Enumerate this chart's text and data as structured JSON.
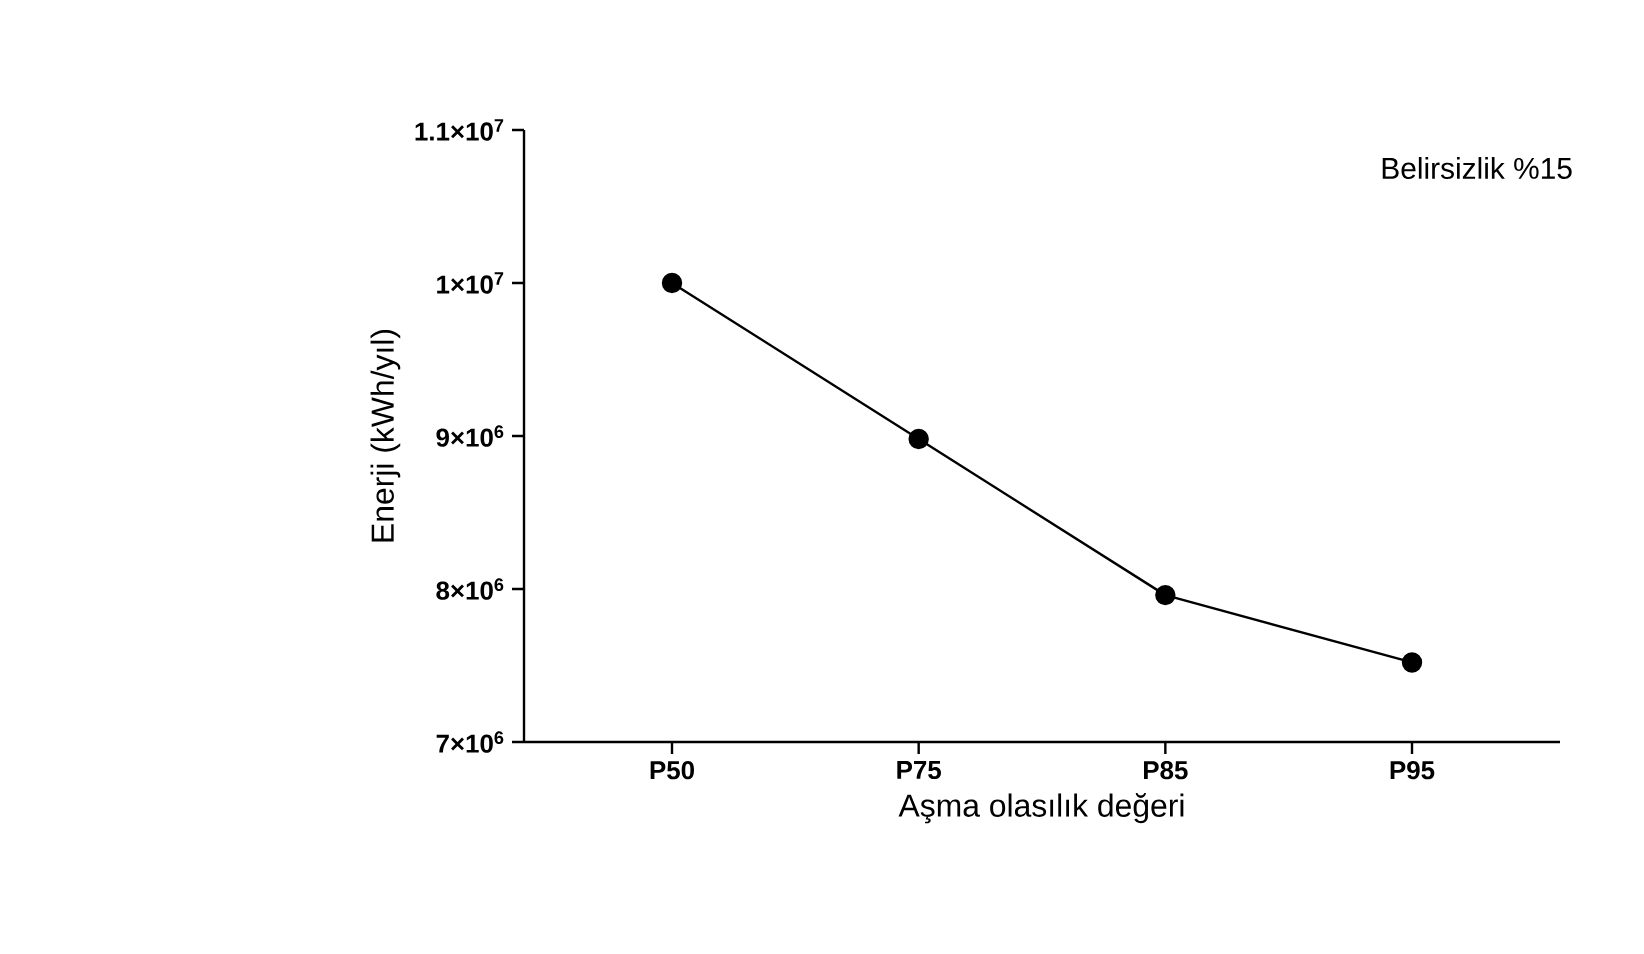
{
  "chart_data": {
    "type": "line",
    "xlabel": "Aşma olasılık değeri",
    "ylabel": "Enerji (kWh/yıl)",
    "annotations": [
      "Belirsizlik %15"
    ],
    "categories": [
      "P50",
      "P75",
      "P85",
      "P95"
    ],
    "values": [
      10000000,
      8980000,
      7960000,
      7520000
    ],
    "color": "#000000",
    "marker": "circle",
    "line_style": "solid",
    "ylim": [
      7000000,
      11000000
    ],
    "yticks": [
      {
        "value": 7000000,
        "label": "7×10$^{6}$"
      },
      {
        "value": 8000000,
        "label": "8×10$^{6}$"
      },
      {
        "value": 9000000,
        "label": "9×10$^{6}$"
      },
      {
        "value": 10000000,
        "label": "1×10$^{7}$"
      },
      {
        "value": 11000000,
        "label": "1.1×10$^{7}$"
      }
    ]
  }
}
